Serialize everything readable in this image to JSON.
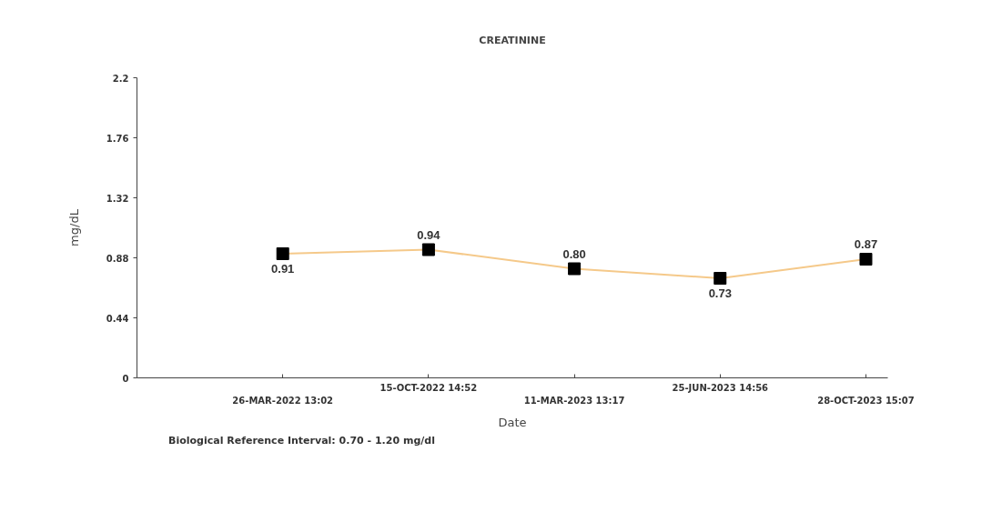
{
  "chart_data": {
    "type": "line",
    "title": "CREATININE",
    "xlabel": "Date",
    "ylabel": "mg/dL",
    "categories": [
      "26-MAR-2022 13:02",
      "15-OCT-2022 14:52",
      "11-MAR-2023 13:17",
      "25-JUN-2023 14:56",
      "28-OCT-2023 15:07"
    ],
    "series": [
      {
        "name": "Biological Reference Interval: 0.70 - 1.20 mg/dl",
        "color": "#f5c98a",
        "values": [
          0.91,
          0.94,
          0.8,
          0.73,
          0.87
        ],
        "value_labels": [
          "0.91",
          "0.94",
          "0.80",
          "0.73",
          "0.87"
        ]
      }
    ],
    "ylim": [
      0,
      2.2
    ],
    "yticks": [
      0,
      0.44,
      0.88,
      1.32,
      1.76,
      2.2
    ],
    "marker": "square",
    "legend": "bottom left",
    "grid": false
  }
}
